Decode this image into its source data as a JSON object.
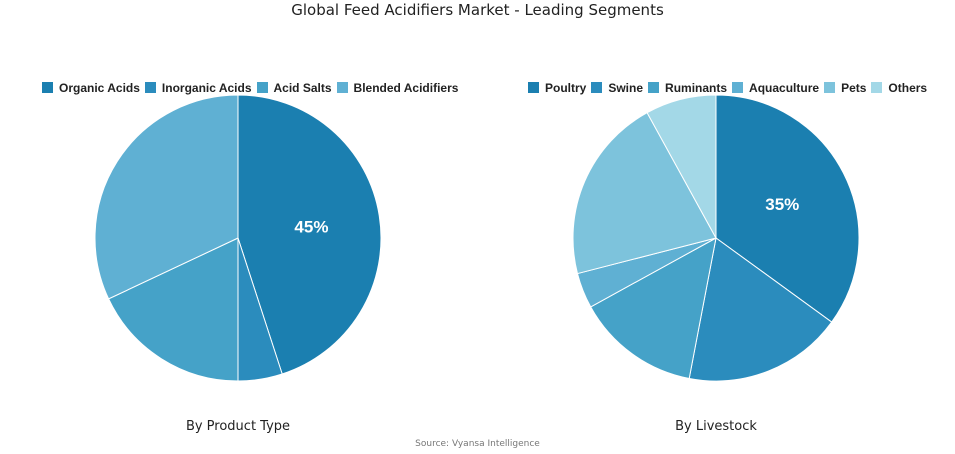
{
  "title": "Global Feed Acidifiers Market - Leading Segments",
  "source": "Source: Vyansa Intelligence",
  "chart_data": [
    {
      "type": "pie",
      "subtitle": "By Product Type",
      "legend_position": "top",
      "categories": [
        "Organic Acids",
        "Inorganic Acids",
        "Acid Salts",
        "Blended Acidifiers"
      ],
      "values": [
        45,
        5,
        18,
        32
      ],
      "colors": [
        "#1b7fb0",
        "#2b8cbd",
        "#45a2c8",
        "#5fb0d3"
      ],
      "data_labels": [
        "45%",
        "",
        "",
        ""
      ]
    },
    {
      "type": "pie",
      "subtitle": "By Livestock",
      "legend_position": "top",
      "categories": [
        "Poultry",
        "Swine",
        "Ruminants",
        "Aquaculture",
        "Pets",
        "Others"
      ],
      "values": [
        35,
        18,
        14,
        4,
        21,
        8
      ],
      "colors": [
        "#1b7fb0",
        "#2b8cbd",
        "#45a2c8",
        "#5fb0d3",
        "#7dc3dc",
        "#a3d8e7"
      ],
      "data_labels": [
        "35%",
        "",
        "",
        "",
        "",
        ""
      ]
    }
  ]
}
